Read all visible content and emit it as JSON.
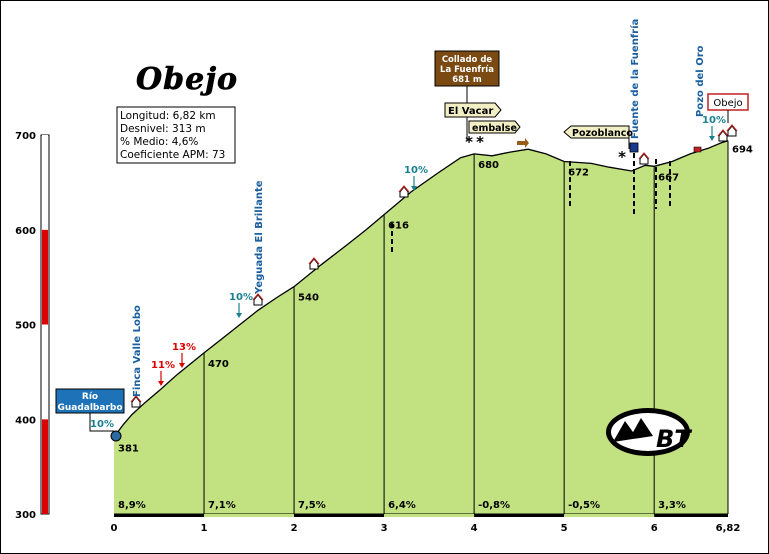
{
  "chart_data": {
    "type": "area",
    "title": "Obejo",
    "info": [
      "Longitud: 6,82 km",
      "Desnivel: 313 m",
      "% Medio: 4,6%",
      "Coeficiente APM: 73"
    ],
    "xlim": [
      0,
      6.82
    ],
    "ylim": [
      300,
      700
    ],
    "x_ticks": [
      "0",
      "1",
      "2",
      "3",
      "4",
      "5",
      "6",
      "6,82"
    ],
    "y_ticks": [
      "300",
      "400",
      "500",
      "600",
      "700"
    ],
    "profile": [
      [
        0,
        381
      ],
      [
        0.1,
        394
      ],
      [
        0.2,
        405
      ],
      [
        0.35,
        418
      ],
      [
        0.5,
        430
      ],
      [
        0.7,
        447
      ],
      [
        1,
        470
      ],
      [
        1.2,
        485
      ],
      [
        1.4,
        500
      ],
      [
        1.6,
        515
      ],
      [
        1.8,
        528
      ],
      [
        2,
        540
      ],
      [
        2.3,
        563
      ],
      [
        2.6,
        585
      ],
      [
        2.8,
        600
      ],
      [
        3,
        616
      ],
      [
        3.3,
        640
      ],
      [
        3.6,
        660
      ],
      [
        3.85,
        676
      ],
      [
        4,
        680
      ],
      [
        4.2,
        678
      ],
      [
        4.4,
        682
      ],
      [
        4.6,
        685
      ],
      [
        4.8,
        680
      ],
      [
        5,
        672
      ],
      [
        5.3,
        670
      ],
      [
        5.5,
        666
      ],
      [
        5.75,
        662
      ],
      [
        5.9,
        668
      ],
      [
        6,
        667
      ],
      [
        6.2,
        672
      ],
      [
        6.4,
        680
      ],
      [
        6.6,
        686
      ],
      [
        6.75,
        692
      ],
      [
        6.82,
        694
      ]
    ],
    "elevation_labels": [
      {
        "x": 0,
        "y": 381,
        "text": "381"
      },
      {
        "x": 1,
        "y": 470,
        "text": "470"
      },
      {
        "x": 2,
        "y": 540,
        "text": "540"
      },
      {
        "x": 3,
        "y": 616,
        "text": "616"
      },
      {
        "x": 4,
        "y": 680,
        "text": "680"
      },
      {
        "x": 5,
        "y": 672,
        "text": "672"
      },
      {
        "x": 6,
        "y": 667,
        "text": "667"
      },
      {
        "x": 6.82,
        "y": 694,
        "text": "694"
      }
    ],
    "segment_grades": [
      "8,9%",
      "7,1%",
      "7,5%",
      "6,4%",
      "-0,8%",
      "-0,5%",
      "3,3%"
    ],
    "gradient_bar": [
      {
        "from": 300,
        "to": 400,
        "color": "#dd0000"
      },
      {
        "from": 400,
        "to": 500,
        "color": "#ffffff"
      },
      {
        "from": 500,
        "to": 600,
        "color": "#dd0000"
      },
      {
        "from": 600,
        "to": 700,
        "color": "#ffffff"
      }
    ],
    "steep_labels": [
      {
        "x": 0.0,
        "y": 388,
        "text": "10%",
        "color": "#1a8090"
      },
      {
        "x": 0.6,
        "y": 460,
        "text": "11%",
        "color": "#dd0000"
      },
      {
        "x": 0.8,
        "y": 480,
        "text": "13%",
        "color": "#dd0000"
      },
      {
        "x": 1.45,
        "y": 525,
        "text": "10%",
        "color": "#1a8090"
      },
      {
        "x": 3.35,
        "y": 655,
        "text": "10%",
        "color": "#1a8090"
      },
      {
        "x": 6.65,
        "y": 703,
        "text": "10%",
        "color": "#1a8090"
      }
    ],
    "vertical_labels": [
      {
        "x": 0.28,
        "y": 413,
        "text": "Finca Valle Lobo"
      },
      {
        "x": 1.63,
        "y": 523,
        "text": "Yeguada El Brillante"
      },
      {
        "x": 5.85,
        "y": 674,
        "text": "Fuente de la Fuenfría"
      },
      {
        "x": 6.55,
        "y": 682,
        "text": "Pozo del Oro"
      }
    ],
    "boxes": {
      "rio": "Río Guadalbarbo",
      "collado": [
        "Collado de",
        "La Fuenfría",
        "681 m"
      ],
      "vacar": "El Vacar",
      "embalse": "embalse",
      "pozoblanco": "Pozoblanco",
      "obejo": "Obejo"
    },
    "logo": "BT",
    "colors": {
      "fill": "#c2e180",
      "blue_box": "#1e73b8",
      "brown_box": "#7a4a12",
      "sign_box": "#f3efc5",
      "teal": "#1a8090",
      "red": "#dd0000"
    }
  }
}
